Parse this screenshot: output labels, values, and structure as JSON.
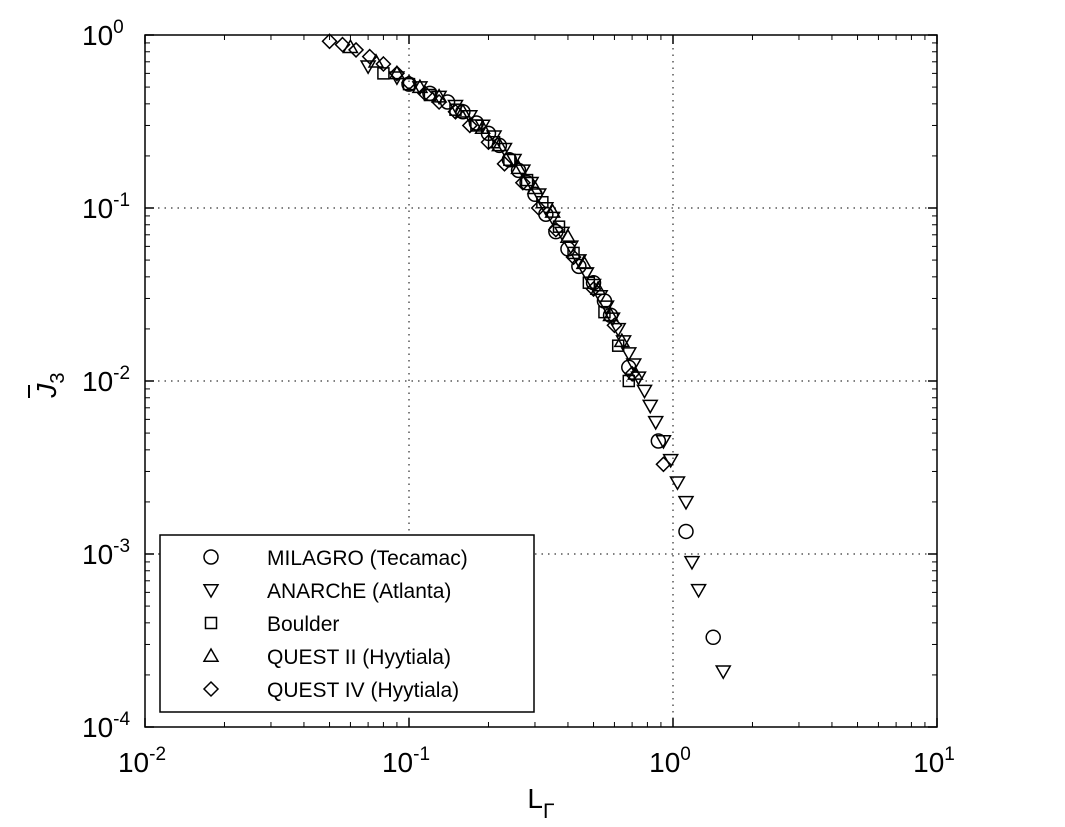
{
  "chart_data": {
    "type": "scatter",
    "xscale": "log",
    "yscale": "log",
    "xlim": [
      0.01,
      10
    ],
    "ylim": [
      0.0001,
      1
    ],
    "grid": true,
    "legend_position": "bottom-left",
    "xlabel": "L",
    "xlabel_sub": "Γ",
    "ylabel": "J",
    "ylabel_sub": "3",
    "x_ticks": [
      {
        "value": 0.01,
        "base": "10",
        "exp": "-2"
      },
      {
        "value": 0.1,
        "base": "10",
        "exp": "-1"
      },
      {
        "value": 1,
        "base": "10",
        "exp": "0"
      },
      {
        "value": 10,
        "base": "10",
        "exp": "1"
      }
    ],
    "y_ticks": [
      {
        "value": 0.0001,
        "base": "10",
        "exp": "-4"
      },
      {
        "value": 0.001,
        "base": "10",
        "exp": "-3"
      },
      {
        "value": 0.01,
        "base": "10",
        "exp": "-2"
      },
      {
        "value": 0.1,
        "base": "10",
        "exp": "-1"
      },
      {
        "value": 1,
        "base": "10",
        "exp": "0"
      }
    ],
    "series": [
      {
        "name": "MILAGRO (Tecamac)",
        "marker": "circle",
        "x": [
          0.1,
          0.12,
          0.14,
          0.16,
          0.18,
          0.2,
          0.22,
          0.24,
          0.26,
          0.28,
          0.3,
          0.33,
          0.36,
          0.4,
          0.44,
          0.5,
          0.55,
          0.58,
          0.68,
          0.88,
          1.12,
          1.42
        ],
        "y": [
          0.52,
          0.46,
          0.41,
          0.36,
          0.31,
          0.27,
          0.23,
          0.19,
          0.165,
          0.14,
          0.12,
          0.092,
          0.073,
          0.058,
          0.046,
          0.037,
          0.029,
          0.024,
          0.012,
          0.0045,
          0.00135,
          0.00033
        ]
      },
      {
        "name": "ANARChE (Atlanta)",
        "marker": "triangle-down",
        "x": [
          0.07,
          0.09,
          0.11,
          0.13,
          0.15,
          0.17,
          0.19,
          0.21,
          0.23,
          0.25,
          0.27,
          0.29,
          0.31,
          0.33,
          0.35,
          0.38,
          0.41,
          0.44,
          0.47,
          0.5,
          0.53,
          0.56,
          0.59,
          0.62,
          0.65,
          0.68,
          0.71,
          0.74,
          0.78,
          0.82,
          0.86,
          0.92,
          0.98,
          1.04,
          1.12,
          1.18,
          1.25,
          1.55
        ],
        "y": [
          0.66,
          0.57,
          0.5,
          0.44,
          0.39,
          0.34,
          0.3,
          0.26,
          0.22,
          0.19,
          0.165,
          0.14,
          0.12,
          0.1,
          0.088,
          0.072,
          0.06,
          0.05,
          0.042,
          0.036,
          0.031,
          0.027,
          0.023,
          0.02,
          0.017,
          0.0145,
          0.0125,
          0.0105,
          0.0088,
          0.0072,
          0.0058,
          0.0045,
          0.0035,
          0.0026,
          0.002,
          0.0009,
          0.00062,
          0.00021
        ]
      },
      {
        "name": "Boulder",
        "marker": "square",
        "x": [
          0.08,
          0.1,
          0.12,
          0.15,
          0.18,
          0.21,
          0.24,
          0.28,
          0.32,
          0.37,
          0.42,
          0.48,
          0.55,
          0.62,
          0.68
        ],
        "y": [
          0.6,
          0.52,
          0.45,
          0.37,
          0.3,
          0.24,
          0.19,
          0.145,
          0.108,
          0.078,
          0.055,
          0.037,
          0.025,
          0.016,
          0.01
        ]
      },
      {
        "name": "QUEST II (Hyytiala)",
        "marker": "triangle-up",
        "x": [
          0.06,
          0.075,
          0.09,
          0.11,
          0.13,
          0.16,
          0.19,
          0.22,
          0.26,
          0.3,
          0.35,
          0.4,
          0.46,
          0.52,
          0.58,
          0.64,
          0.72
        ],
        "y": [
          0.85,
          0.7,
          0.6,
          0.5,
          0.44,
          0.36,
          0.29,
          0.23,
          0.17,
          0.13,
          0.095,
          0.068,
          0.048,
          0.034,
          0.024,
          0.017,
          0.011
        ]
      },
      {
        "name": "QUEST IV (Hyytiala)",
        "marker": "diamond",
        "x": [
          0.05,
          0.056,
          0.063,
          0.071,
          0.08,
          0.09,
          0.1,
          0.115,
          0.13,
          0.15,
          0.17,
          0.2,
          0.23,
          0.27,
          0.31,
          0.36,
          0.42,
          0.5,
          0.6,
          0.7,
          0.92
        ],
        "y": [
          0.92,
          0.88,
          0.82,
          0.75,
          0.68,
          0.6,
          0.53,
          0.46,
          0.41,
          0.36,
          0.3,
          0.24,
          0.18,
          0.14,
          0.1,
          0.075,
          0.052,
          0.034,
          0.021,
          0.011,
          0.0033
        ]
      }
    ]
  }
}
